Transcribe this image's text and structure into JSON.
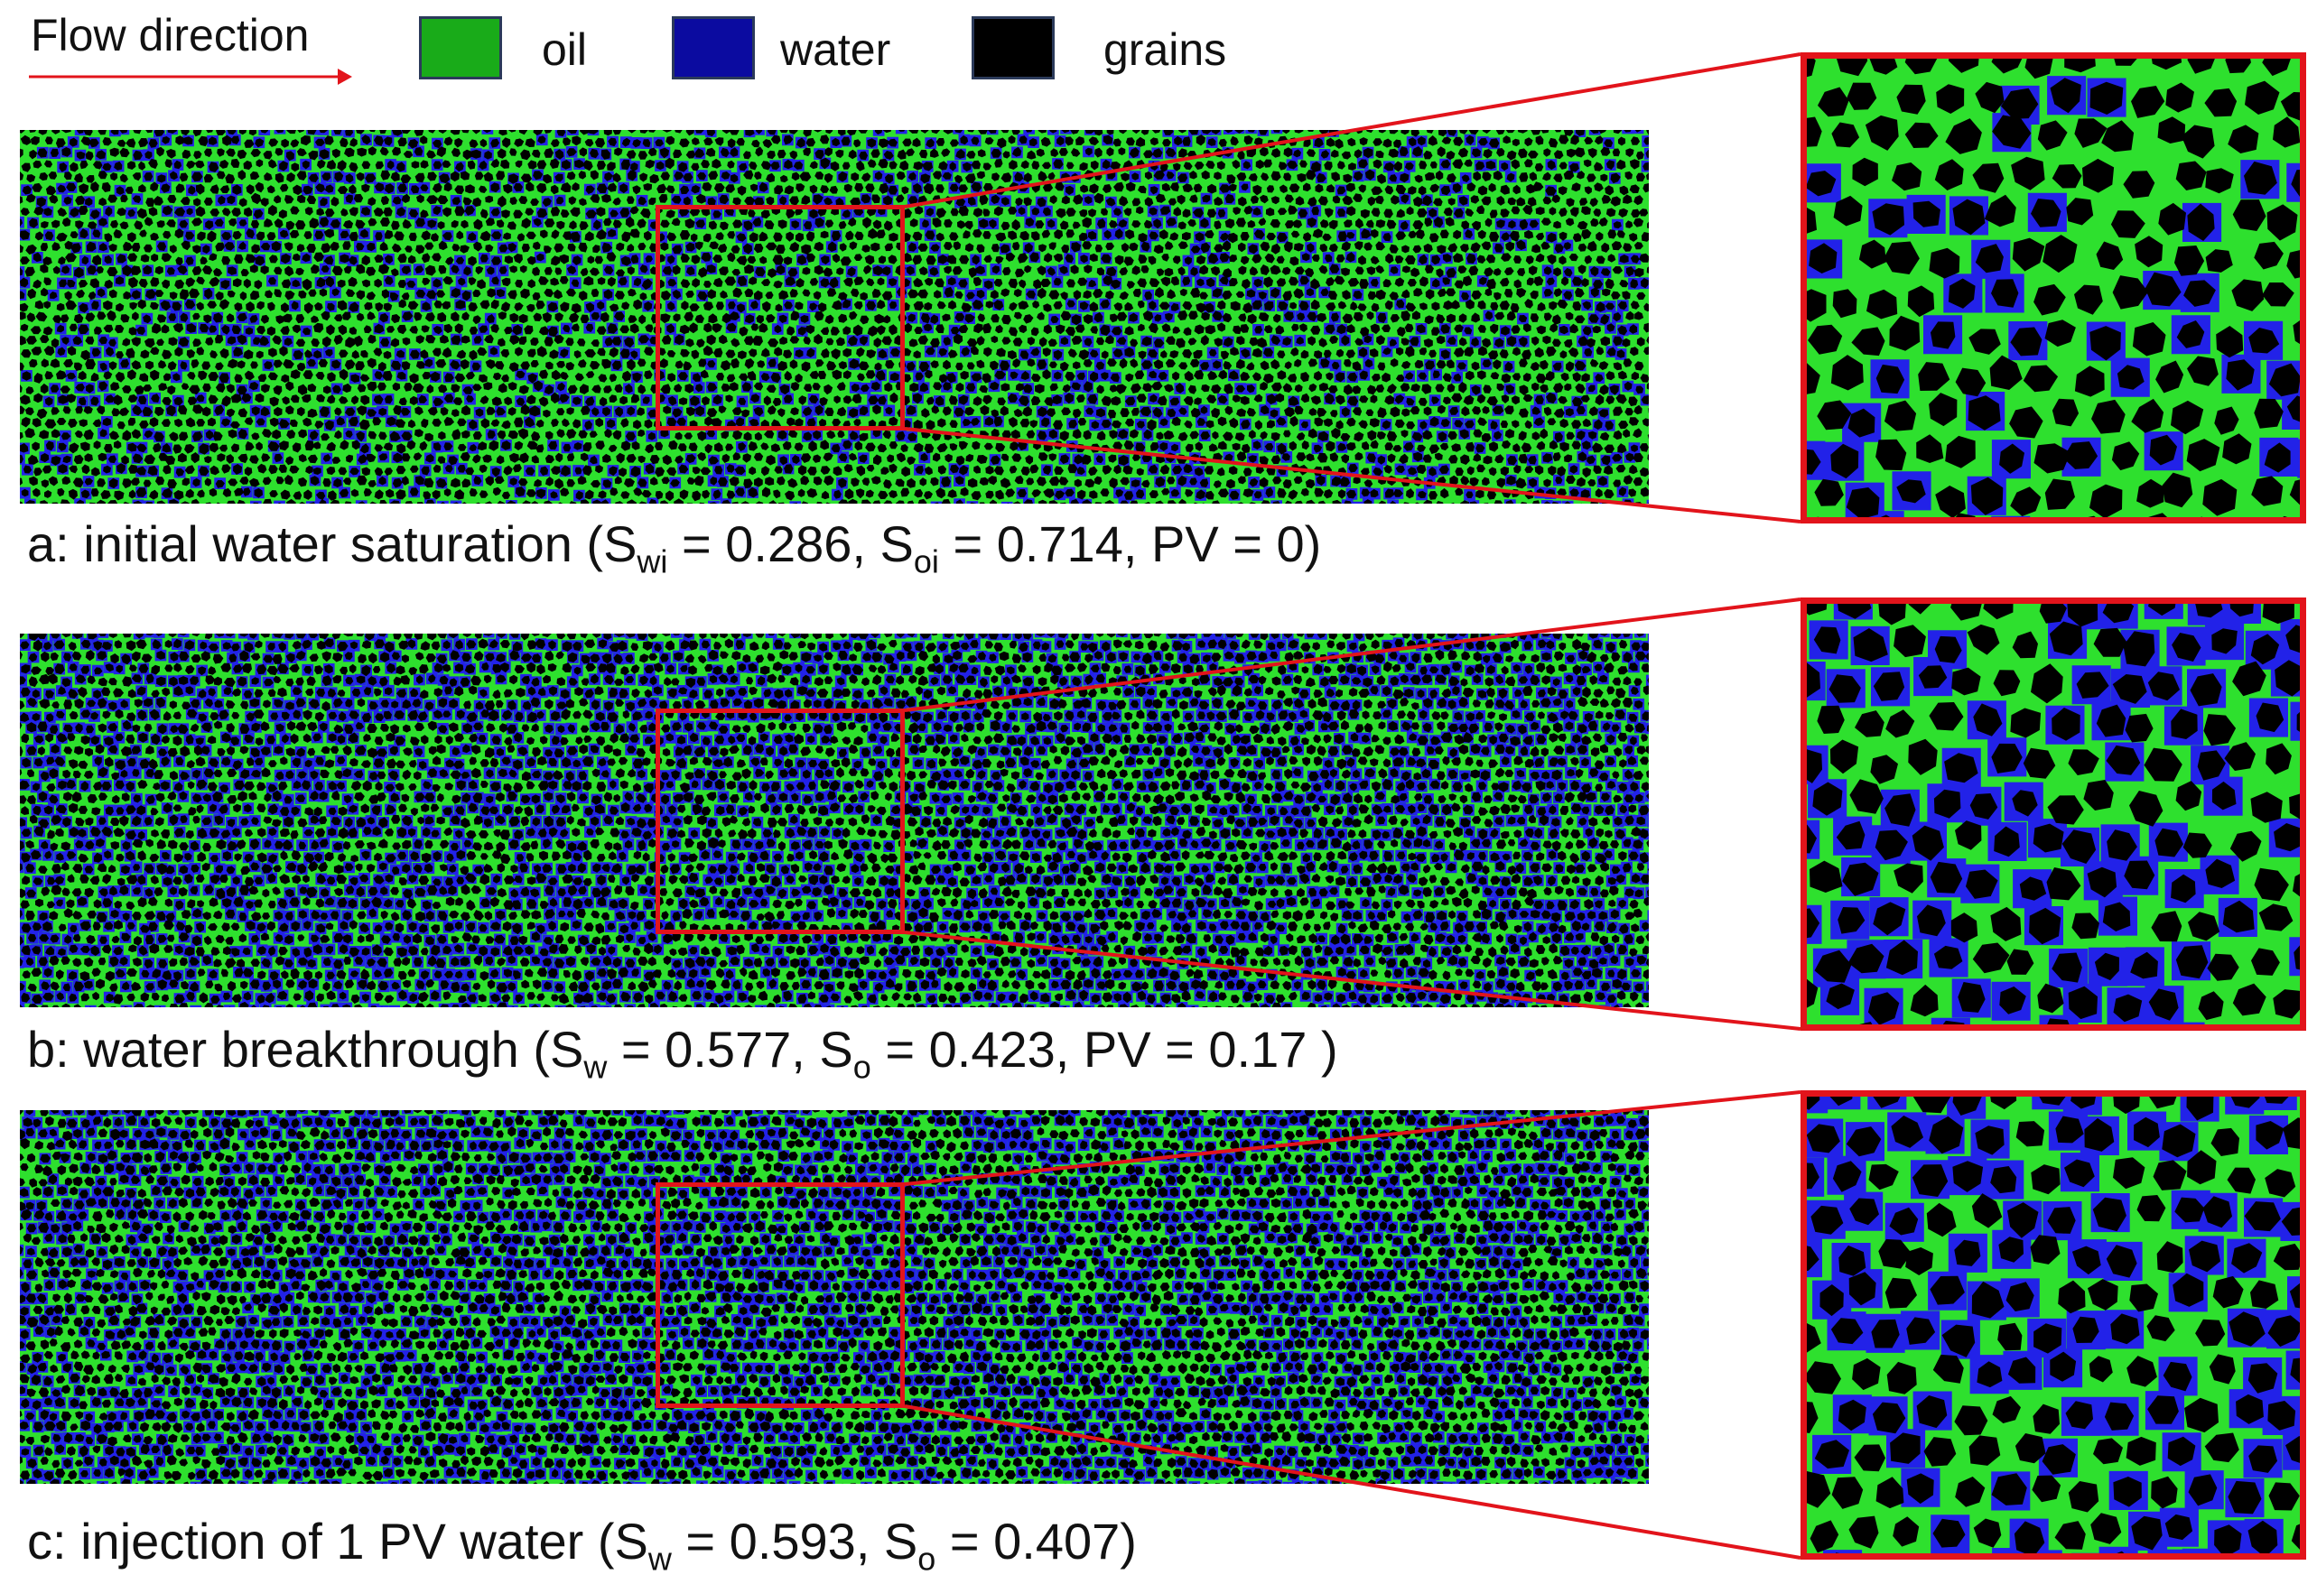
{
  "legend": {
    "flow_direction": "Flow direction",
    "items": [
      {
        "label": "oil",
        "color": "#19ab19"
      },
      {
        "label": "water",
        "color": "#0b0ba0"
      },
      {
        "label": "grains",
        "color": "#000000"
      }
    ]
  },
  "colors": {
    "oil": "#2ee02e",
    "water": "#2222e8",
    "grains": "#000000",
    "highlight": "#e2141b"
  },
  "panels": [
    {
      "id": "a",
      "caption": {
        "prefix": "a: initial water saturation (S",
        "sub1": "wi",
        "mid1": " = 0.286, S",
        "sub2": "oi",
        "mid2": " = 0.714, PV = 0)"
      },
      "water_fraction": 0.286
    },
    {
      "id": "b",
      "caption": {
        "prefix": "b: water breakthrough (S",
        "sub1": "w",
        "mid1": " = 0.577, S",
        "sub2": "o",
        "mid2": " = 0.423, PV = 0.17 )"
      },
      "water_fraction": 0.577
    },
    {
      "id": "c",
      "caption": {
        "prefix": "c: injection of 1 PV water (S",
        "sub1": "w",
        "mid1": " = 0.593, S",
        "sub2": "o",
        "mid2": " = 0.407)"
      },
      "water_fraction": 0.593
    }
  ]
}
